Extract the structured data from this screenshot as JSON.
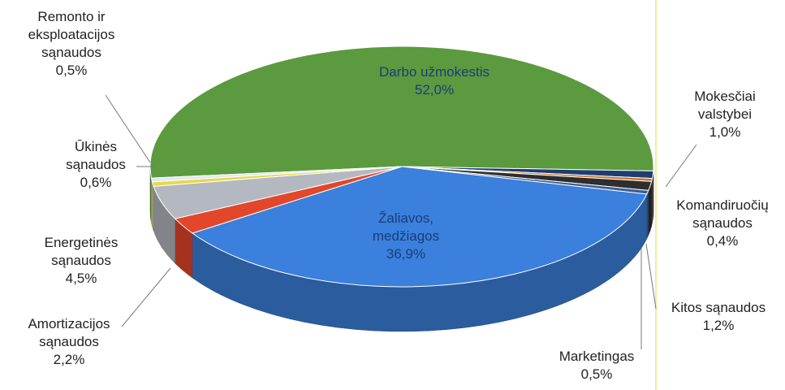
{
  "chart_data": {
    "type": "pie3d",
    "categories": [
      "Darbo užmokestis",
      "Mokesčiai valstybei",
      "Komandiruočių sąnaudos",
      "Kitos sąnaudos",
      "Marketingas",
      "Žaliavos, medžiagos",
      "Amortizacijos sąnaudos",
      "Energetinės sąnaudos",
      "Ūkinės sąnaudos",
      "Remonto ir eksploatacijos sąnaudos"
    ],
    "values": [
      52.0,
      1.0,
      0.4,
      1.2,
      0.5,
      36.9,
      2.2,
      4.5,
      0.6,
      0.5
    ],
    "value_labels": [
      "52,0%",
      "1,0%",
      "0,4%",
      "1,2%",
      "0,5%",
      "36,9%",
      "2,2%",
      "4,5%",
      "0,6%",
      "0,5%"
    ],
    "colors": [
      "#5b9a3e",
      "#1f3d73",
      "#c8732a",
      "#2e2e2e",
      "#3d5f99",
      "#3a80dc",
      "#e2472b",
      "#b4b8c0",
      "#e8d84a",
      "#dfe8f5"
    ]
  }
}
